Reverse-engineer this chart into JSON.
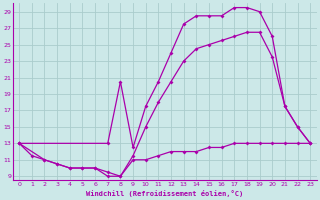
{
  "xlabel": "Windchill (Refroidissement éolien,°C)",
  "bg_color": "#cce8e8",
  "grid_color": "#aacccc",
  "line_color": "#aa00aa",
  "xlim": [
    -0.5,
    23.5
  ],
  "ylim": [
    8.5,
    30.0
  ],
  "xticks": [
    0,
    1,
    2,
    3,
    4,
    5,
    6,
    7,
    8,
    9,
    10,
    11,
    12,
    13,
    14,
    15,
    16,
    17,
    18,
    19,
    20,
    21,
    22,
    23
  ],
  "yticks": [
    9,
    11,
    13,
    15,
    17,
    19,
    21,
    23,
    25,
    27,
    29
  ],
  "line1_x": [
    0,
    1,
    2,
    3,
    4,
    5,
    6,
    7,
    8,
    9,
    10,
    11,
    12,
    13,
    14,
    15,
    16,
    17,
    18,
    19,
    20,
    21,
    22,
    23
  ],
  "line1_y": [
    13,
    11.5,
    11,
    10.5,
    10,
    10,
    10,
    9.5,
    9,
    11,
    11,
    11.5,
    12,
    12,
    12,
    12.5,
    12.5,
    13,
    13,
    13,
    13,
    13,
    13,
    13
  ],
  "line2_x": [
    0,
    7,
    8,
    9,
    10,
    11,
    12,
    13,
    14,
    15,
    16,
    17,
    18,
    19,
    20,
    21,
    22,
    23
  ],
  "line2_y": [
    13,
    13,
    20.5,
    12.5,
    17.5,
    20.5,
    24,
    27.5,
    28.5,
    28.5,
    28.5,
    29.5,
    29.5,
    29,
    26,
    17.5,
    15,
    13
  ],
  "line3_x": [
    0,
    2,
    3,
    4,
    5,
    6,
    7,
    8,
    9,
    10,
    11,
    12,
    13,
    14,
    15,
    16,
    17,
    18,
    19,
    20,
    21,
    22,
    23
  ],
  "line3_y": [
    13,
    11,
    10.5,
    10,
    10,
    10,
    9,
    9,
    11.5,
    15,
    18,
    20.5,
    23,
    24.5,
    25,
    25.5,
    26,
    26.5,
    26.5,
    23.5,
    17.5,
    15,
    13
  ]
}
